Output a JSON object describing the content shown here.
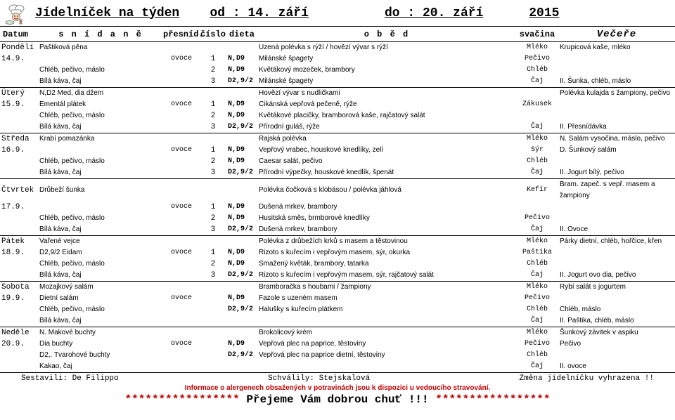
{
  "title": {
    "label": "Jídelníček na týden",
    "od": "od : 14. září",
    "do": "do  : 20. září",
    "rok": "2015"
  },
  "hdr": {
    "day": "Datum",
    "break": "s n í d a n ě",
    "fruit": "přesníd.",
    "num": "číslo",
    "diet": "dieta",
    "lunch": "o b ě d",
    "snack": "svačina",
    "dinner": "Večeře"
  },
  "days": [
    {
      "name": "Pondělí",
      "date": "14.9.",
      "rows": [
        {
          "b": "Paštiková pěna",
          "f": "",
          "n": "",
          "d": "",
          "l": "Uzená polévka s rýží / hovězí vývar s rýží",
          "s": "Mléko",
          "v": "Krupicová kaše, mléko"
        },
        {
          "b": "",
          "f": "ovoce",
          "n": "1",
          "d": "N,D9",
          "l": "Milánské špagety",
          "s": "Pečivo",
          "v": ""
        },
        {
          "b": "Chléb, pečivo, máslo",
          "f": "",
          "n": "2",
          "d": "N,D9",
          "l": "Květákový mozeček, brambory",
          "s": "Chléb",
          "v": ""
        },
        {
          "b": "Bílá káva, čaj",
          "f": "",
          "n": "3",
          "d": "D2,9/2",
          "l": "Milánské špagety",
          "s": "Čaj",
          "v": "II. Šunka, chléb, máslo"
        }
      ]
    },
    {
      "name": "Úterý",
      "date": "15.9.",
      "rows": [
        {
          "b": "N,D2 Med, dia džem",
          "f": "",
          "n": "",
          "d": "",
          "l": "Hovězí vývar s nudličkami",
          "s": "",
          "v": "Polévka kulajda s žampiony, pečivo"
        },
        {
          "b": "Ementál plátek",
          "f": "ovoce",
          "n": "1",
          "d": "N,D9",
          "l": "Cikánská vepřová pečeně, rýže",
          "s": "Zákusek",
          "v": ""
        },
        {
          "b": "Chléb, pečivo, máslo",
          "f": "",
          "n": "2",
          "d": "N,D9",
          "l": "Květákové placičky, bramborová kaše, rajčatový salát",
          "s": "",
          "v": ""
        },
        {
          "b": "Bílá káva, čaj",
          "f": "",
          "n": "3",
          "d": "D2,9/2",
          "l": "Přírodní guláš, rýže",
          "s": "Čaj",
          "v": "II. Přesnídávka"
        }
      ]
    },
    {
      "name": "Středa",
      "date": "16.9.",
      "rows": [
        {
          "b": "Krabí pomazánka",
          "f": "",
          "n": "",
          "d": "",
          "l": "Rajská polévka",
          "s": "Mléko",
          "v": "N. Salám vysočina, máslo, pečivo"
        },
        {
          "b": "",
          "f": "ovoce",
          "n": "1",
          "d": "N,D9",
          "l": "Vepřový vrabec, houskové knedlíky, zelí",
          "s": "Sýr",
          "v": "D. Šunkový salám"
        },
        {
          "b": "Chléb, pečivo, máslo",
          "f": "",
          "n": "2",
          "d": "N,D9",
          "l": "Caesar salát, pečivo",
          "s": "Chléb",
          "v": ""
        },
        {
          "b": "Bílá káva, čaj",
          "f": "",
          "n": "3",
          "d": "D2,9/2",
          "l": "Přírodní výpečky, houskové knedlík, špenát",
          "s": "Čaj",
          "v": "II. Jogurt bílý, pečivo"
        }
      ]
    },
    {
      "name": "Čtvrtek",
      "date": "17.9.",
      "rows": [
        {
          "b": "Drůbeží šunka",
          "f": "",
          "n": "",
          "d": "",
          "l": "Polévka čočková s klobásou / polévka jáhlová",
          "s": "Kefír",
          "v": "Bram. zapeč. s vepř. masem a žampiony"
        },
        {
          "b": "",
          "f": "ovoce",
          "n": "1",
          "d": "N,D9",
          "l": "Dušená mrkev, brambory",
          "s": "",
          "v": ""
        },
        {
          "b": "Chléb, pečivo, máslo",
          "f": "",
          "n": "2",
          "d": "N,D9",
          "l": "Husitská směs, brmborové knedlíky",
          "s": "Pečivo",
          "v": ""
        },
        {
          "b": "Bílá káva, čaj",
          "f": "",
          "n": "3",
          "d": "D2,9/2",
          "l": "Dušená mrkev, brambory",
          "s": "Čaj",
          "v": "II. Ovoce"
        }
      ]
    },
    {
      "name": "Pátek",
      "date": "18.9.",
      "rows": [
        {
          "b": "Vařené vejce",
          "f": "",
          "n": "",
          "d": "",
          "l": "Polévka z drůbežích krků s masem a těstovinou",
          "s": "Mléko",
          "v": "Párky dietní, chléb, hořčice, křen"
        },
        {
          "b": "D2,9/2 Eidam",
          "f": "ovoce",
          "n": "1",
          "d": "N,D9",
          "l": "Rizoto s kuřecím i vepřovým masem, sýr, okurka",
          "s": "Paštika",
          "v": ""
        },
        {
          "b": "Chléb, pečivo, máslo",
          "f": "",
          "n": "2",
          "d": "N,D9",
          "l": "Smažený květák, brambory, tatarka",
          "s": "Chléb",
          "v": ""
        },
        {
          "b": "Bílá káva, čaj",
          "f": "",
          "n": "3",
          "d": "D2,9/2",
          "l": "Rizoto s kuřecím i vepřovým masem, sýr, rajčatový salát",
          "s": "Čaj",
          "v": "II. Jogurt ovo dia, pečivo"
        }
      ]
    },
    {
      "name": "Sobota",
      "date": "19.9.",
      "rows": [
        {
          "b": "Mozajkový salám",
          "f": "",
          "n": "",
          "d": "",
          "l": "Bramboračka s houbami / žampiony",
          "s": "Mléko",
          "v": "Rybí salát s jogurtem"
        },
        {
          "b": "Dietní salám",
          "f": "ovoce",
          "n": "",
          "d": "N,D9",
          "l": "Fazole s uzeném masem",
          "s": "Pečivo",
          "v": ""
        },
        {
          "b": "Chléb, pečivo, máslo",
          "f": "",
          "n": "",
          "d": "D2,9/2",
          "l": "Halušky s kuřecím plátkem",
          "s": "Chléb",
          "v": "Chléb, máslo"
        },
        {
          "b": "Bílá káva, čaj",
          "f": "",
          "n": "",
          "d": "",
          "l": "",
          "s": "Čaj",
          "v": "II. Paštika, chléb, máslo"
        }
      ]
    },
    {
      "name": "Neděle",
      "date": "20.9.",
      "rows": [
        {
          "b": "N. Makové buchty",
          "f": "",
          "n": "",
          "d": "",
          "l": "Brokolicový krém",
          "s": "Mléko",
          "v": "Šunkový závitek v aspiku"
        },
        {
          "b": "Dia buchty",
          "f": "ovoce",
          "n": "",
          "d": "N,D9",
          "l": "Vepřová plec na paprice, těstoviny",
          "s": "Pečivo",
          "v": "Pečivo"
        },
        {
          "b": "D2,. Tvarohové buchty",
          "f": "",
          "n": "",
          "d": "D2,9/2",
          "l": "Vepřová plec na paprice dietní, těstoviny",
          "s": "Chléb",
          "v": ""
        },
        {
          "b": "Kakao, čaj",
          "f": "",
          "n": "",
          "d": "",
          "l": "",
          "s": "Čaj",
          "v": "II. ovoce"
        }
      ]
    }
  ],
  "footer": {
    "l1a": "Sestavili: De Filippo",
    "l1b": "Schválily:  Stejskalová",
    "l1c": "Změna  jídelníčku  vyhrazena  !!",
    "l2": "Informace o alergenech obsažených v potravinách jsou k dispozici u vedoucího stravování.",
    "l3a": "*****************",
    "l3b": "Přejeme Vám dobrou chuť !!!",
    "l3c": "*****************"
  },
  "style": {
    "red": "#c00000",
    "fontMono": "Courier New"
  }
}
